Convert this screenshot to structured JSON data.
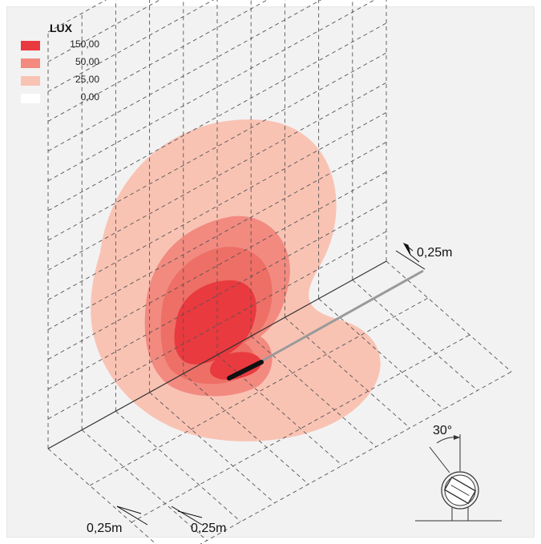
{
  "legend": {
    "title": "LUX",
    "items": [
      {
        "value": "150,00",
        "color": "#e93a3f"
      },
      {
        "value": "50,00",
        "color": "#f28a80"
      },
      {
        "value": "25,00",
        "color": "#f9c3b4"
      },
      {
        "value": "0,00",
        "color": "#ffffff"
      }
    ]
  },
  "dimensions": {
    "wall_spacing": "0,25m",
    "floor_spacing_left": "0,25m",
    "floor_spacing_right": "0,25m"
  },
  "fixture": {
    "tilt_angle": "30°"
  },
  "colors": {
    "background": "#f2f2f2",
    "grid": "#555555",
    "fixture": "#111111"
  }
}
